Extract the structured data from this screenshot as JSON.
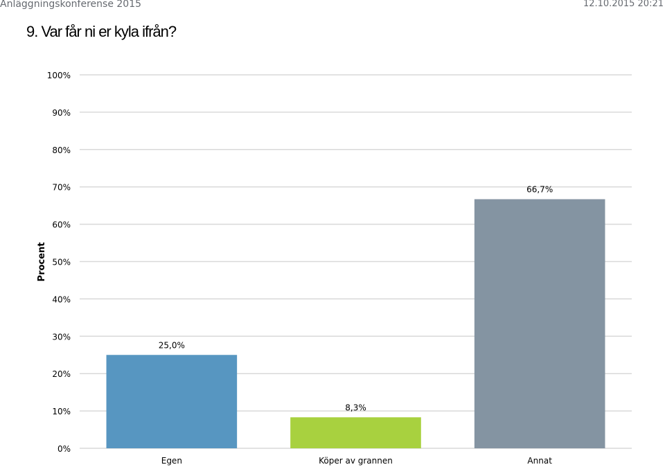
{
  "header": {
    "conference": "Anläggningskonferense 2015",
    "timestamp": "12.10.2015 20:21"
  },
  "question": {
    "title": "9. Var får ni er kyla ifrån?"
  },
  "chart_data": {
    "type": "bar",
    "title": "",
    "xlabel": "",
    "ylabel": "Procent",
    "categories": [
      "Egen",
      "Köper av grannen",
      "Annat"
    ],
    "values": [
      25.0,
      8.3,
      66.7
    ],
    "value_labels": [
      "25,0%",
      "8,3%",
      "66,7%"
    ],
    "colors": [
      "#5796c1",
      "#a8d13f",
      "#8494a2"
    ],
    "ylim": [
      0,
      100
    ],
    "yticks": [
      0,
      10,
      20,
      30,
      40,
      50,
      60,
      70,
      80,
      90,
      100
    ],
    "ytick_labels": [
      "0%",
      "10%",
      "20%",
      "30%",
      "40%",
      "50%",
      "60%",
      "70%",
      "80%",
      "90%",
      "100%"
    ],
    "grid": true,
    "legend": "none"
  }
}
